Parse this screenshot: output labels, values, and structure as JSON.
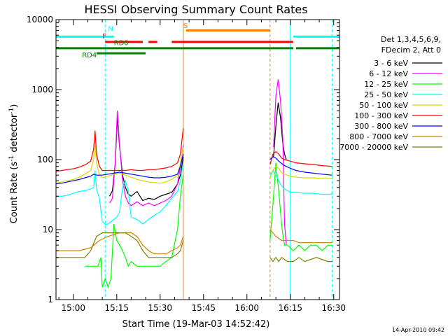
{
  "chart_data": {
    "type": "line",
    "title": "HESSI Observing Summary Count Rates",
    "xlabel": "Start Time (19-Mar-03 14:52:42)",
    "ylabel_main": "Count Rate (s",
    "ylabel_sup1": "-1",
    "ylabel_mid": " detector",
    "ylabel_sup2": "-1",
    "ylabel_end": ")",
    "x_unit": "minutes",
    "xlim": [
      894,
      992
    ],
    "ylim": [
      1,
      10000
    ],
    "yscale": "log",
    "x_ticks": [
      {
        "v": 900,
        "label": "15:00"
      },
      {
        "v": 915,
        "label": "15:15"
      },
      {
        "v": 930,
        "label": "15:30"
      },
      {
        "v": 945,
        "label": "15:45"
      },
      {
        "v": 960,
        "label": "16:00"
      },
      {
        "v": 975,
        "label": "16:15"
      },
      {
        "v": 990,
        "label": "16:30"
      }
    ],
    "y_ticks": [
      {
        "v": 1,
        "label": "1"
      },
      {
        "v": 10,
        "label": "10"
      },
      {
        "v": 100,
        "label": "100"
      },
      {
        "v": 1000,
        "label": "1000"
      },
      {
        "v": 10000,
        "label": "10000"
      }
    ],
    "legend_header": [
      "Det 1,3,4,5,6,9,",
      "FDecim 2, Att 0"
    ],
    "legend_position": "right",
    "timestamp": "14-Apr-2010 09:42",
    "series": [
      {
        "name": "3 - 6 keV",
        "color": "#000000",
        "x": [
          912.5,
          913.5,
          914.5,
          915.2,
          916,
          917,
          918,
          919,
          920,
          922,
          924,
          926,
          928,
          930,
          932,
          934,
          936,
          937,
          938,
          969.2,
          970,
          970.8,
          971.6,
          972.4,
          973,
          973.6
        ],
        "y": [
          30,
          36,
          90,
          400,
          150,
          60,
          40,
          32,
          30,
          35,
          26,
          28,
          27,
          30,
          32,
          34,
          45,
          60,
          110,
          110,
          300,
          650,
          400,
          170,
          120,
          100
        ]
      },
      {
        "name": "6 - 12 keV",
        "color": "#ff00ff",
        "x": [
          912.5,
          913.5,
          914.5,
          915.2,
          916,
          917,
          918,
          919,
          920,
          922,
          924,
          926,
          928,
          930,
          932,
          934,
          936,
          937,
          938,
          969.2,
          970,
          970.8,
          971.6,
          972.4,
          973,
          973.6
        ],
        "y": [
          24,
          28,
          95,
          500,
          160,
          50,
          30,
          24,
          22,
          25,
          22,
          24,
          22,
          24,
          26,
          30,
          45,
          80,
          160,
          150,
          800,
          1400,
          700,
          200,
          12,
          6
        ]
      },
      {
        "name": "12 - 25 keV",
        "color": "#00ff00",
        "x": [
          904,
          905.5,
          906.5,
          907.5,
          908.5,
          909.5,
          910,
          911,
          912,
          913,
          914,
          915,
          916,
          917,
          918,
          919,
          920,
          922,
          924,
          926,
          928,
          930,
          932,
          934,
          936,
          937,
          938,
          968,
          969.2,
          970,
          971,
          972,
          972.5,
          973,
          974,
          976,
          978,
          980,
          982,
          984,
          986,
          988,
          989.5
        ],
        "y": [
          3,
          3,
          3,
          3,
          3,
          4,
          1.5,
          2,
          1.5,
          2,
          12,
          7,
          6,
          5,
          4,
          3,
          3.5,
          3,
          3,
          3,
          3,
          3,
          3.5,
          4,
          10,
          30,
          60,
          7,
          30,
          90,
          35,
          12,
          8,
          6,
          6,
          5,
          6,
          5,
          6,
          6,
          5,
          6,
          6
        ]
      },
      {
        "name": "25 - 50 keV",
        "color": "#00ffff",
        "x": [
          894,
          896,
          898,
          900,
          902,
          904,
          906,
          907,
          907.5,
          908,
          909,
          910,
          911,
          912,
          913,
          914,
          915,
          916,
          917,
          918,
          919,
          920,
          922,
          924,
          926,
          928,
          930,
          932,
          934,
          936,
          937,
          938,
          968,
          969,
          970,
          971,
          972,
          973,
          975,
          977,
          980,
          983,
          986,
          989.5
        ],
        "y": [
          30,
          30,
          31,
          33,
          35,
          36,
          38,
          40,
          70,
          38,
          28,
          13,
          12,
          12,
          13,
          14,
          15,
          18,
          40,
          50,
          35,
          15,
          14,
          12,
          14,
          16,
          18,
          22,
          28,
          35,
          50,
          90,
          60,
          70,
          60,
          50,
          42,
          38,
          34,
          34,
          33,
          33,
          32,
          32
        ]
      },
      {
        "name": "50 - 100 keV",
        "color": "#d8d800",
        "x": [
          894,
          896,
          898,
          900,
          902,
          904,
          906,
          907,
          907.5,
          908,
          909,
          910,
          912,
          914,
          916,
          918,
          920,
          922,
          924,
          926,
          928,
          930,
          932,
          934,
          936,
          937,
          938,
          968,
          969,
          970,
          971,
          972,
          973,
          975,
          977,
          980,
          983,
          986,
          989.5
        ],
        "y": [
          46,
          48,
          50,
          52,
          56,
          62,
          70,
          100,
          160,
          90,
          60,
          55,
          58,
          62,
          64,
          60,
          56,
          52,
          50,
          48,
          47,
          46,
          48,
          52,
          60,
          90,
          150,
          55,
          70,
          80,
          75,
          65,
          62,
          58,
          56,
          55,
          55,
          54,
          54
        ]
      },
      {
        "name": "100 - 300 keV",
        "color": "#ff0000",
        "x": [
          894,
          896,
          898,
          900,
          902,
          904,
          906,
          907,
          907.5,
          908,
          909,
          910,
          912,
          914,
          916,
          918,
          920,
          922,
          924,
          926,
          928,
          930,
          932,
          934,
          936,
          937,
          938,
          968,
          969,
          970,
          971,
          972,
          973,
          975,
          977,
          980,
          983,
          986,
          989.5
        ],
        "y": [
          68,
          70,
          72,
          74,
          78,
          84,
          95,
          140,
          260,
          120,
          80,
          70,
          70,
          70,
          70,
          70,
          72,
          70,
          70,
          72,
          72,
          74,
          76,
          80,
          90,
          120,
          280,
          85,
          120,
          130,
          120,
          105,
          100,
          95,
          90,
          87,
          85,
          82,
          80
        ]
      },
      {
        "name": "300 - 800 keV",
        "color": "#0000ff",
        "x": [
          894,
          896,
          898,
          900,
          902,
          904,
          906,
          907,
          908,
          910,
          912,
          914,
          916,
          918,
          920,
          922,
          924,
          926,
          928,
          930,
          932,
          934,
          936,
          937,
          938,
          968,
          969,
          970,
          971,
          972,
          973,
          975,
          977,
          980,
          983,
          986,
          989.5
        ],
        "y": [
          45,
          46,
          48,
          50,
          52,
          55,
          58,
          62,
          60,
          60,
          62,
          64,
          66,
          64,
          62,
          60,
          58,
          56,
          55,
          55,
          56,
          58,
          62,
          80,
          120,
          100,
          110,
          105,
          95,
          88,
          82,
          75,
          70,
          66,
          64,
          62,
          60
        ]
      },
      {
        "name": "800 - 7000 keV",
        "color": "#d08000",
        "x": [
          894,
          898,
          902,
          906,
          909,
          912,
          914,
          916,
          918,
          920,
          922,
          924,
          926,
          928,
          930,
          932,
          934,
          936,
          937,
          938,
          968,
          969,
          970,
          971,
          972,
          974,
          976,
          978,
          980,
          984,
          988,
          989.5
        ],
        "y": [
          5,
          5,
          5,
          5.5,
          7,
          8,
          8.5,
          9,
          9,
          9,
          8,
          6,
          5,
          4.5,
          4.5,
          4.5,
          5,
          5.5,
          6,
          8,
          10,
          9,
          8,
          7.5,
          7,
          7,
          7,
          6.5,
          6.5,
          6.5,
          6.5,
          6.5
        ]
      },
      {
        "name": "7000 - 20000 keV",
        "color": "#808000",
        "x": [
          894,
          896,
          898,
          900,
          902,
          904,
          906,
          908,
          910,
          912,
          914,
          916,
          918,
          920,
          922,
          924,
          926,
          928,
          930,
          932,
          934,
          936,
          937,
          938,
          968,
          969,
          970,
          971,
          972,
          974,
          976,
          978,
          980,
          984,
          988,
          989.5
        ],
        "y": [
          4,
          4,
          4,
          4,
          4,
          4,
          5,
          8,
          9,
          9,
          9,
          9,
          9,
          8,
          7,
          5,
          4,
          4,
          4,
          4,
          4,
          4.5,
          5,
          7,
          4,
          3.5,
          4,
          3.5,
          4,
          3.5,
          3.5,
          4,
          3.5,
          4,
          3.5,
          3.5
        ]
      }
    ],
    "flag_bars": [
      {
        "label": "N",
        "color": "#00ffff",
        "y": 5700,
        "segments": [
          [
            894,
            914
          ],
          [
            976,
            992
          ]
        ],
        "label_x": 912,
        "label_y": 6800
      },
      {
        "label": "S",
        "color": "#ff8000",
        "y": 7000,
        "segments": [
          [
            939,
            968
          ]
        ],
        "label_x": 938,
        "label_y": 7600
      },
      {
        "label": "F",
        "color": "#ff0000",
        "y": 4800,
        "segments": [
          [
            911,
            924
          ],
          [
            926,
            929
          ],
          [
            934,
            976
          ]
        ],
        "label_x": 910,
        "label_y": 5400
      },
      {
        "label": "RD0",
        "color": "#008000",
        "y": 3900,
        "segments": [
          [
            894,
            976
          ],
          [
            977,
            992
          ]
        ],
        "label_x": 914,
        "label_y": 4300
      },
      {
        "label": "RD4",
        "color": "#008000",
        "y": 3300,
        "segments": [
          [
            908,
            925
          ]
        ],
        "label_x": 903,
        "label_y": 2900
      }
    ],
    "vlines": [
      {
        "x": 894,
        "color": "#00ffff",
        "dashed": false
      },
      {
        "x": 911,
        "color": "#00ffff",
        "dashed": true
      },
      {
        "x": 938,
        "color": "#ff8000",
        "dashed": false
      },
      {
        "x": 968,
        "color": "#ff8000",
        "dashed": true
      },
      {
        "x": 975,
        "color": "#00ffff",
        "dashed": false
      },
      {
        "x": 989.5,
        "color": "#00ffff",
        "dashed": true
      }
    ]
  }
}
